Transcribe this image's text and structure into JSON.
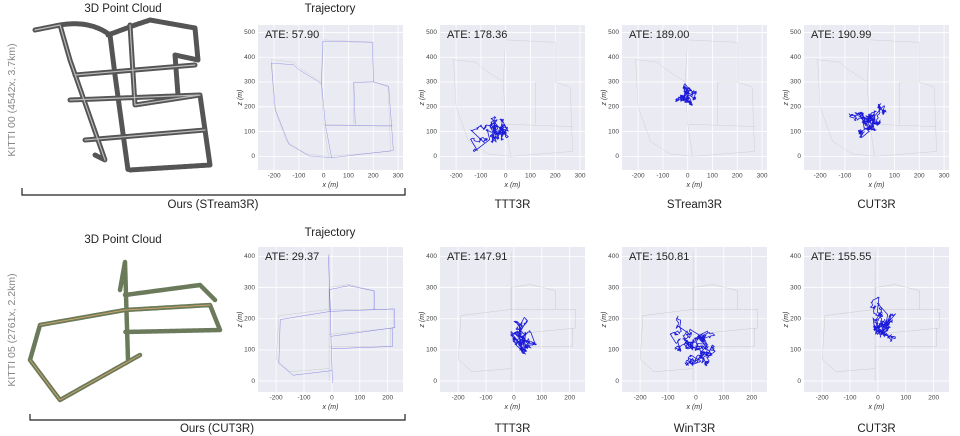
{
  "rows": [
    {
      "side_label": "KITTI 00 (4542x, 3.7km)",
      "point_cloud_title": "3D Point Cloud",
      "trajectory_title": "Trajectory",
      "bracket_caption": "Ours (STream3R)",
      "x_label": "x (m)",
      "y_label": "z (m)",
      "xlim": [
        -265,
        320
      ],
      "ylim": [
        -55,
        530
      ],
      "xticks": [
        -200,
        -100,
        0,
        100,
        200,
        300
      ],
      "yticks": [
        0,
        100,
        200,
        300,
        400,
        500
      ],
      "plots": [
        {
          "ate": "ATE: 57.90"
        },
        {
          "ate": "ATE: 178.36",
          "caption": "TTT3R"
        },
        {
          "ate": "ATE: 189.00",
          "caption": "STream3R"
        },
        {
          "ate": "ATE: 190.99",
          "caption": "CUT3R"
        }
      ]
    },
    {
      "side_label": "KITTI 05 (2761x, 2.2km)",
      "point_cloud_title": "3D Point Cloud",
      "trajectory_title": "Trajectory",
      "bracket_caption": "Ours (CUT3R)",
      "x_label": "x (m)",
      "y_label": "z (m)",
      "xlim": [
        -265,
        255
      ],
      "ylim": [
        -35,
        430
      ],
      "xticks": [
        -200,
        -100,
        0,
        100,
        200
      ],
      "yticks": [
        0,
        100,
        200,
        300,
        400
      ],
      "plots": [
        {
          "ate": "ATE: 29.37"
        },
        {
          "ate": "ATE: 147.91",
          "caption": "TTT3R"
        },
        {
          "ate": "ATE: 150.81",
          "caption": "WinT3R"
        },
        {
          "ate": "ATE: 155.55",
          "caption": "CUT3R"
        }
      ]
    }
  ]
}
